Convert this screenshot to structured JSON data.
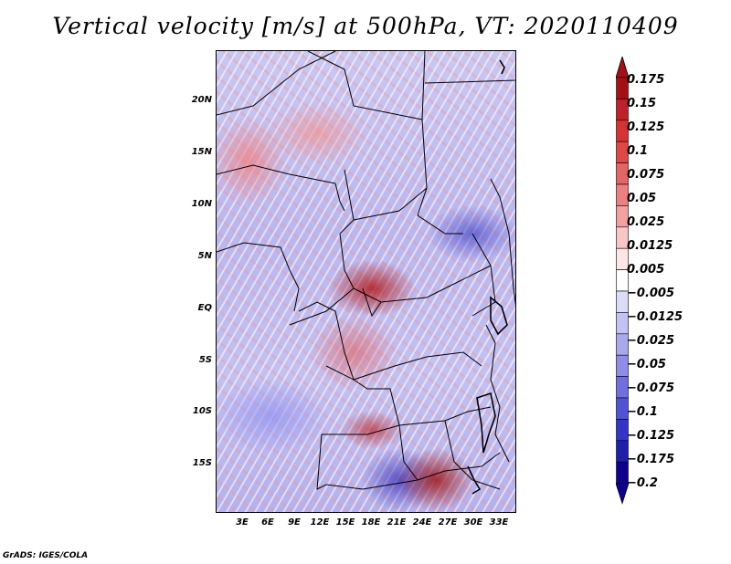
{
  "title": "Vertical velocity [m/s] at 500hPa, VT: 2020110409",
  "footer": "GrADS: IGES/COLA",
  "map": {
    "lat_labels": [
      "20N",
      "15N",
      "10N",
      "5N",
      "EQ",
      "5S",
      "10S",
      "15S"
    ],
    "lon_labels": [
      "3E",
      "6E",
      "9E",
      "12E",
      "15E",
      "18E",
      "21E",
      "24E",
      "27E",
      "30E",
      "33E"
    ]
  },
  "colorbar": {
    "labels": [
      "0.175",
      "0.15",
      "0.125",
      "0.1",
      "0.075",
      "0.05",
      "0.025",
      "0.0125",
      "0.005",
      "−0.005",
      "−0.0125",
      "−0.025",
      "−0.05",
      "−0.075",
      "−0.1",
      "−0.125",
      "−0.175",
      "−0.2"
    ],
    "colors": [
      "#a50f15",
      "#c0202a",
      "#d73232",
      "#e04848",
      "#e56464",
      "#ec8080",
      "#f3a0a0",
      "#f8c6c6",
      "#fde6e6",
      "#ffffff",
      "#dcdcf8",
      "#c3c3f3",
      "#a8a8ee",
      "#8e8ee8",
      "#6f6fe0",
      "#5252d6",
      "#3434c8",
      "#1f1faa",
      "#100090"
    ],
    "top_color": "#a50f15",
    "bottom_color": "#100090"
  }
}
